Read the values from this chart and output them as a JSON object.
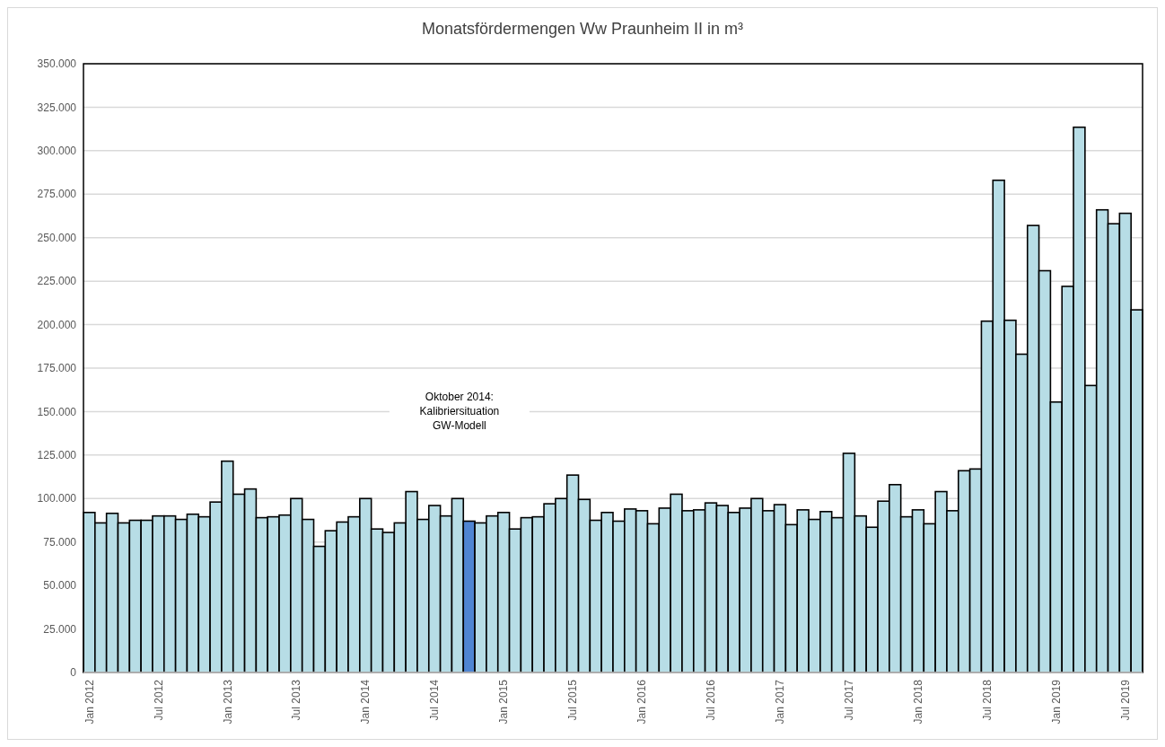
{
  "chart_data": {
    "type": "bar",
    "title": "Monatsfördermengen Ww Praunheim II in m³",
    "categories": [
      "Jan 2012",
      null,
      null,
      null,
      null,
      null,
      "Jul 2012",
      null,
      null,
      null,
      null,
      null,
      "Jan 2013",
      null,
      null,
      null,
      null,
      null,
      "Jul 2013",
      null,
      null,
      null,
      null,
      null,
      "Jan 2014",
      null,
      null,
      null,
      null,
      null,
      "Jul 2014",
      null,
      null,
      null,
      null,
      null,
      "Jan 2015",
      null,
      null,
      null,
      null,
      null,
      "Jul 2015",
      null,
      null,
      null,
      null,
      null,
      "Jan 2016",
      null,
      null,
      null,
      null,
      null,
      "Jul 2016",
      null,
      null,
      null,
      null,
      null,
      "Jan 2017",
      null,
      null,
      null,
      null,
      null,
      "Jul 2017",
      null,
      null,
      null,
      null,
      null,
      "Jan 2018",
      null,
      null,
      null,
      null,
      null,
      "Jul 2018",
      null,
      null,
      null,
      null,
      null,
      "Jan 2019",
      null,
      null,
      null,
      null,
      null,
      "Jul 2019",
      null
    ],
    "values": [
      92000,
      86000,
      91500,
      86000,
      87500,
      87500,
      90000,
      90000,
      88000,
      91000,
      89500,
      98000,
      121500,
      102500,
      105500,
      89000,
      89500,
      90500,
      100000,
      88000,
      72500,
      81500,
      86500,
      89500,
      100000,
      82500,
      80500,
      86000,
      104000,
      88000,
      96000,
      90000,
      100000,
      87000,
      86000,
      90000,
      92000,
      82500,
      89000,
      89500,
      97000,
      100000,
      113500,
      99500,
      87500,
      92000,
      87000,
      94000,
      93000,
      85500,
      94500,
      102500,
      93000,
      93500,
      97500,
      96000,
      92000,
      94500,
      100000,
      93000,
      96500,
      85000,
      93500,
      88000,
      92500,
      89000,
      126000,
      90000,
      83500,
      98500,
      108000,
      89500,
      93500,
      85500,
      104000,
      93000,
      116000,
      117000,
      202000,
      283000,
      202500,
      183000,
      257000,
      231000,
      155500,
      222000,
      313500,
      165000,
      266000,
      258000,
      264000,
      208500
    ],
    "colors": [
      "#b7dde6",
      "#b7dde6",
      "#b7dde6",
      "#b7dde6",
      "#b7dde6",
      "#b7dde6",
      "#b7dde6",
      "#b7dde6",
      "#b7dde6",
      "#b7dde6",
      "#b7dde6",
      "#b7dde6",
      "#b7dde6",
      "#b7dde6",
      "#b7dde6",
      "#b7dde6",
      "#b7dde6",
      "#b7dde6",
      "#b7dde6",
      "#b7dde6",
      "#b7dde6",
      "#b7dde6",
      "#b7dde6",
      "#b7dde6",
      "#b7dde6",
      "#b7dde6",
      "#b7dde6",
      "#b7dde6",
      "#b7dde6",
      "#b7dde6",
      "#b7dde6",
      "#b7dde6",
      "#b7dde6",
      "#4f85d2",
      "#b7dde6",
      "#b7dde6",
      "#b7dde6",
      "#b7dde6",
      "#b7dde6",
      "#b7dde6",
      "#b7dde6",
      "#b7dde6",
      "#b7dde6",
      "#b7dde6",
      "#b7dde6",
      "#b7dde6",
      "#b7dde6",
      "#b7dde6",
      "#b7dde6",
      "#b7dde6",
      "#b7dde6",
      "#b7dde6",
      "#b7dde6",
      "#b7dde6",
      "#b7dde6",
      "#b7dde6",
      "#b7dde6",
      "#b7dde6",
      "#b7dde6",
      "#b7dde6",
      "#b7dde6",
      "#b7dde6",
      "#b7dde6",
      "#b7dde6",
      "#b7dde6",
      "#b7dde6",
      "#b7dde6",
      "#b7dde6",
      "#b7dde6",
      "#b7dde6",
      "#b7dde6",
      "#b7dde6",
      "#b7dde6",
      "#b7dde6",
      "#b7dde6",
      "#b7dde6",
      "#b7dde6",
      "#b7dde6",
      "#b7dde6",
      "#b7dde6",
      "#b7dde6",
      "#b7dde6",
      "#b7dde6",
      "#b7dde6",
      "#b7dde6",
      "#b7dde6",
      "#b7dde6",
      "#b7dde6",
      "#b7dde6",
      "#b7dde6",
      "#b7dde6",
      "#b7dde6"
    ],
    "ylim": [
      0,
      350000
    ],
    "yticks": [
      0,
      {
        "value": 25000,
        "label": "25.000"
      },
      {
        "value": 50000,
        "label": "50.000"
      },
      {
        "value": 75000,
        "label": "75.000"
      },
      {
        "value": 100000,
        "label": "100.000"
      },
      {
        "value": 125000,
        "label": "125.000"
      },
      {
        "value": 150000,
        "label": "150.000"
      },
      {
        "value": 175000,
        "label": "175.000"
      },
      {
        "value": 200000,
        "label": "200.000"
      },
      {
        "value": 225000,
        "label": "225.000"
      },
      {
        "value": 250000,
        "label": "250.000"
      },
      {
        "value": 275000,
        "label": "275.000"
      },
      {
        "value": 300000,
        "label": "300.000"
      },
      {
        "value": 325000,
        "label": "325.000"
      },
      {
        "value": 350000,
        "label": "350.000"
      }
    ],
    "grid": "y",
    "annotations": [
      "Oktober 2014:\nKalibriersituation\nGW-Modell"
    ]
  }
}
